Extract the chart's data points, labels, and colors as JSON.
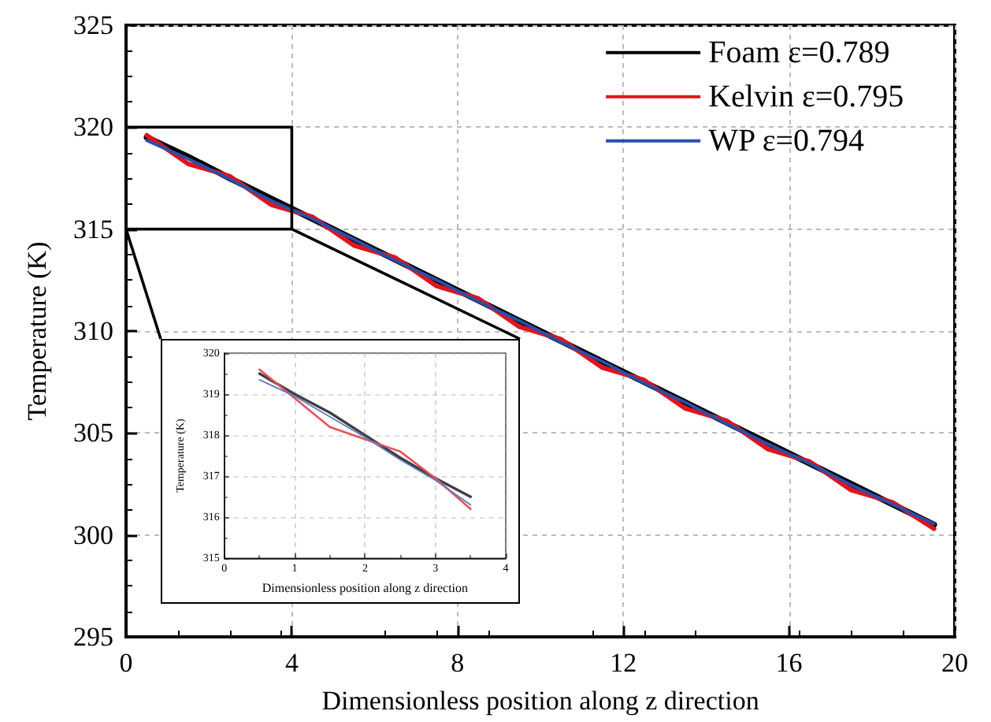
{
  "chart_data": [
    {
      "type": "line",
      "xlabel": "Dimensionless position along z direction",
      "ylabel": "Temperature (K)",
      "xlim": [
        0,
        20
      ],
      "xticks": [
        0,
        4,
        8,
        12,
        16,
        20
      ],
      "ylim": [
        295,
        325
      ],
      "yticks": [
        295,
        300,
        305,
        310,
        315,
        320,
        325
      ],
      "grid": true,
      "legend": "top right",
      "x": [
        0.5,
        1.5,
        2.5,
        3.5,
        4.5,
        5.5,
        6.5,
        7.5,
        8.5,
        9.5,
        10.5,
        11.5,
        12.5,
        13.5,
        14.5,
        15.5,
        16.5,
        17.5,
        18.5,
        19.5
      ],
      "series": [
        {
          "name": "Foam ε=0.789",
          "color": "#000000",
          "values": [
            319.5,
            318.55,
            317.5,
            316.5,
            315.5,
            314.5,
            313.5,
            312.5,
            311.5,
            310.5,
            309.5,
            308.5,
            307.5,
            306.5,
            305.5,
            304.5,
            303.5,
            302.5,
            301.5,
            300.5
          ]
        },
        {
          "name": "Kelvin ε=0.795",
          "color": "#e0141e",
          "values": [
            319.6,
            318.2,
            317.6,
            316.2,
            315.6,
            314.2,
            313.6,
            312.2,
            311.6,
            310.2,
            309.6,
            308.2,
            307.6,
            306.2,
            305.6,
            304.2,
            303.6,
            302.2,
            301.6,
            300.3
          ]
        },
        {
          "name": "WP ε=0.794",
          "color": "#2a4fa8",
          "values": [
            319.35,
            318.45,
            317.45,
            316.4,
            315.5,
            314.5,
            313.45,
            312.5,
            311.45,
            310.5,
            309.45,
            308.5,
            307.45,
            306.5,
            305.45,
            304.45,
            303.5,
            302.45,
            301.5,
            300.55
          ]
        }
      ]
    },
    {
      "type": "line",
      "xlabel": "Dimensionless position along z direction",
      "ylabel": "Temperature (K)",
      "xlim": [
        0,
        4
      ],
      "xticks": [
        0,
        1,
        2,
        3,
        4
      ],
      "ylim": [
        315,
        320
      ],
      "yticks": [
        315,
        316,
        317,
        318,
        319,
        320
      ],
      "grid": true,
      "x": [
        0.5,
        1,
        1.5,
        2,
        2.5,
        3,
        3.5
      ],
      "series": [
        {
          "color": "#404040",
          "values": [
            319.5,
            319.0,
            318.55,
            318.0,
            317.45,
            316.95,
            316.5
          ]
        },
        {
          "color": "#e8505a",
          "values": [
            319.6,
            318.9,
            318.2,
            317.9,
            317.6,
            316.95,
            316.2
          ]
        },
        {
          "color": "#5a7cc0",
          "values": [
            319.35,
            318.95,
            318.45,
            317.95,
            317.4,
            316.9,
            316.3
          ]
        }
      ]
    }
  ]
}
